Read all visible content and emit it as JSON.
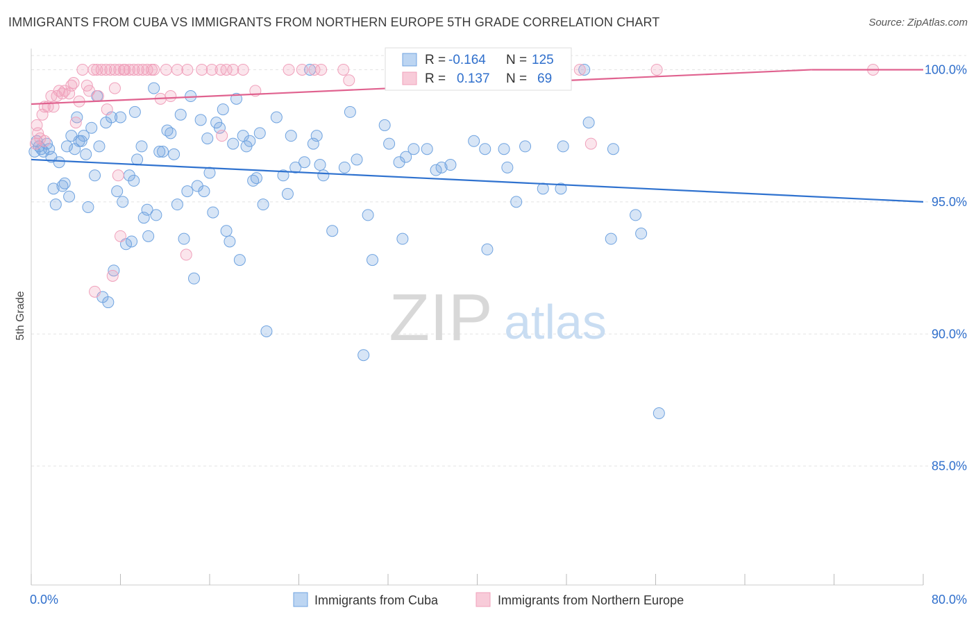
{
  "title": "IMMIGRANTS FROM CUBA VS IMMIGRANTS FROM NORTHERN EUROPE 5TH GRADE CORRELATION CHART",
  "source": "Source: ZipAtlas.com",
  "watermark": {
    "zip": "ZIP",
    "atlas": "atlas"
  },
  "colors": {
    "blue": "#6fa3e0",
    "blue_line": "#2f72cf",
    "pink": "#f0a0bb",
    "pink_line": "#e0628f",
    "label_blue": "#2f6fcc"
  },
  "legend_box": {
    "rows": [
      {
        "series": "cuba",
        "r_label": "R =",
        "r_value": "-0.164",
        "n_label": "N =",
        "n_value": "125"
      },
      {
        "series": "northern_europe",
        "r_label": "R =",
        "r_value": "0.137",
        "n_label": "N =",
        "n_value": "69"
      }
    ]
  },
  "bottom_legend": [
    {
      "series": "cuba",
      "label": "Immigrants from Cuba"
    },
    {
      "series": "northern_europe",
      "label": "Immigrants from Northern Europe"
    }
  ],
  "chart_data": {
    "type": "scatter",
    "ylabel": "5th Grade",
    "xlim": [
      0,
      80
    ],
    "ylim": [
      80.5,
      100.8
    ],
    "x_tick_labels": [
      "0.0%",
      "80.0%"
    ],
    "y_ticks": [
      85,
      90,
      95,
      100
    ],
    "y_tick_labels": [
      "85.0%",
      "90.0%",
      "95.0%",
      "100.0%"
    ],
    "grid": "horizontal dashed",
    "legend_placement": "top-center",
    "series": [
      {
        "name": "Immigrants from Cuba",
        "key": "cuba",
        "trend": {
          "x": [
            0,
            80
          ],
          "y": [
            96.6,
            95.0
          ]
        },
        "points": [
          [
            0.3,
            96.9
          ],
          [
            0.5,
            97.3
          ],
          [
            0.7,
            97.1
          ],
          [
            0.9,
            97.0
          ],
          [
            1.1,
            96.9
          ],
          [
            1.4,
            97.2
          ],
          [
            1.6,
            97.0
          ],
          [
            1.8,
            96.7
          ],
          [
            2.0,
            95.5
          ],
          [
            2.2,
            94.9
          ],
          [
            2.5,
            96.5
          ],
          [
            2.8,
            95.6
          ],
          [
            3.0,
            95.7
          ],
          [
            3.2,
            97.1
          ],
          [
            3.4,
            95.2
          ],
          [
            3.6,
            97.5
          ],
          [
            3.9,
            97.0
          ],
          [
            4.1,
            98.2
          ],
          [
            4.3,
            97.3
          ],
          [
            4.5,
            97.3
          ],
          [
            4.7,
            97.5
          ],
          [
            4.9,
            96.8
          ],
          [
            5.1,
            94.8
          ],
          [
            5.4,
            97.8
          ],
          [
            5.7,
            96.0
          ],
          [
            5.9,
            99.0
          ],
          [
            6.1,
            97.1
          ],
          [
            6.4,
            91.4
          ],
          [
            6.7,
            98.0
          ],
          [
            6.9,
            91.2
          ],
          [
            7.2,
            98.2
          ],
          [
            7.4,
            92.4
          ],
          [
            7.7,
            95.4
          ],
          [
            8.0,
            98.2
          ],
          [
            8.2,
            95.0
          ],
          [
            8.5,
            93.4
          ],
          [
            8.8,
            96.0
          ],
          [
            9.0,
            93.5
          ],
          [
            9.3,
            98.4
          ],
          [
            9.5,
            96.6
          ],
          [
            9.9,
            97.1
          ],
          [
            10.1,
            94.4
          ],
          [
            10.4,
            94.7
          ],
          [
            10.5,
            93.7
          ],
          [
            11.0,
            99.3
          ],
          [
            11.5,
            96.9
          ],
          [
            11.8,
            96.9
          ],
          [
            12.2,
            97.7
          ],
          [
            12.5,
            97.6
          ],
          [
            12.8,
            96.8
          ],
          [
            13.1,
            94.9
          ],
          [
            13.4,
            98.3
          ],
          [
            13.7,
            93.6
          ],
          [
            14.0,
            95.4
          ],
          [
            14.3,
            99.0
          ],
          [
            14.6,
            92.1
          ],
          [
            14.9,
            95.6
          ],
          [
            15.2,
            98.1
          ],
          [
            15.5,
            95.4
          ],
          [
            15.8,
            97.4
          ],
          [
            16.0,
            96.1
          ],
          [
            16.3,
            94.6
          ],
          [
            16.6,
            98.0
          ],
          [
            16.9,
            97.8
          ],
          [
            17.2,
            98.5
          ],
          [
            17.5,
            93.9
          ],
          [
            17.8,
            93.5
          ],
          [
            18.1,
            97.2
          ],
          [
            18.4,
            98.9
          ],
          [
            18.7,
            92.8
          ],
          [
            19.0,
            97.5
          ],
          [
            19.3,
            97.1
          ],
          [
            19.6,
            97.3
          ],
          [
            19.9,
            95.8
          ],
          [
            20.2,
            95.9
          ],
          [
            20.5,
            97.6
          ],
          [
            20.8,
            94.9
          ],
          [
            21.1,
            90.1
          ],
          [
            22.0,
            98.2
          ],
          [
            22.6,
            96.0
          ],
          [
            23.0,
            95.3
          ],
          [
            23.3,
            97.5
          ],
          [
            23.7,
            96.3
          ],
          [
            24.5,
            96.5
          ],
          [
            25.0,
            100.0
          ],
          [
            25.3,
            97.2
          ],
          [
            25.6,
            97.5
          ],
          [
            25.9,
            96.4
          ],
          [
            26.2,
            96.0
          ],
          [
            27.0,
            93.9
          ],
          [
            28.1,
            96.3
          ],
          [
            28.6,
            98.4
          ],
          [
            29.2,
            96.6
          ],
          [
            29.8,
            89.2
          ],
          [
            30.2,
            94.5
          ],
          [
            30.6,
            92.8
          ],
          [
            31.7,
            97.9
          ],
          [
            32.1,
            97.2
          ],
          [
            33.0,
            96.5
          ],
          [
            33.3,
            93.6
          ],
          [
            33.6,
            96.7
          ],
          [
            34.3,
            97.0
          ],
          [
            35.5,
            97.0
          ],
          [
            36.3,
            96.2
          ],
          [
            36.8,
            96.3
          ],
          [
            37.6,
            96.4
          ],
          [
            39.7,
            97.3
          ],
          [
            40.7,
            97.0
          ],
          [
            40.9,
            93.2
          ],
          [
            42.4,
            97.0
          ],
          [
            42.7,
            96.3
          ],
          [
            43.5,
            95.0
          ],
          [
            44.3,
            97.1
          ],
          [
            52.2,
            97.0
          ],
          [
            45.9,
            95.5
          ],
          [
            47.7,
            97.1
          ],
          [
            47.5,
            95.5
          ],
          [
            49.6,
            100.0
          ],
          [
            50.0,
            98.0
          ],
          [
            52.0,
            93.6
          ],
          [
            54.2,
            94.5
          ],
          [
            54.7,
            93.8
          ],
          [
            56.3,
            87.0
          ],
          [
            11.2,
            94.5
          ],
          [
            9.2,
            95.8
          ]
        ]
      },
      {
        "name": "Immigrants from Northern Europe",
        "key": "northern_europe",
        "trend": {
          "x": [
            0,
            70
          ],
          "y": [
            98.7,
            100.0
          ]
        },
        "points": [
          [
            0.5,
            97.9
          ],
          [
            0.6,
            97.6
          ],
          [
            0.8,
            97.4
          ],
          [
            1.0,
            98.3
          ],
          [
            1.2,
            98.6
          ],
          [
            1.5,
            98.6
          ],
          [
            1.8,
            99.0
          ],
          [
            2.0,
            98.6
          ],
          [
            2.3,
            99.0
          ],
          [
            2.5,
            99.2
          ],
          [
            2.8,
            99.1
          ],
          [
            3.0,
            99.2
          ],
          [
            3.4,
            99.1
          ],
          [
            3.6,
            99.4
          ],
          [
            3.8,
            99.5
          ],
          [
            4.0,
            98.0
          ],
          [
            4.3,
            98.8
          ],
          [
            4.6,
            100.0
          ],
          [
            5.0,
            99.4
          ],
          [
            5.2,
            99.2
          ],
          [
            5.6,
            100.0
          ],
          [
            5.9,
            100.0
          ],
          [
            6.3,
            100.0
          ],
          [
            6.7,
            100.0
          ],
          [
            7.1,
            100.0
          ],
          [
            7.5,
            100.0
          ],
          [
            7.9,
            100.0
          ],
          [
            8.3,
            100.0
          ],
          [
            8.8,
            100.0
          ],
          [
            9.2,
            100.0
          ],
          [
            9.6,
            100.0
          ],
          [
            10.0,
            100.0
          ],
          [
            10.4,
            100.0
          ],
          [
            10.8,
            100.0
          ],
          [
            6.0,
            99.0
          ],
          [
            7.5,
            99.3
          ],
          [
            6.8,
            98.5
          ],
          [
            7.8,
            96.0
          ],
          [
            8.0,
            93.7
          ],
          [
            7.3,
            92.2
          ],
          [
            5.7,
            91.6
          ],
          [
            12.5,
            99.0
          ],
          [
            14.0,
            100.0
          ],
          [
            15.3,
            100.0
          ],
          [
            17.0,
            100.0
          ],
          [
            18.1,
            100.0
          ],
          [
            19.0,
            100.0
          ],
          [
            23.1,
            100.0
          ],
          [
            26.0,
            100.0
          ],
          [
            28.0,
            100.0
          ],
          [
            17.1,
            97.5
          ],
          [
            12.1,
            100.0
          ],
          [
            16.2,
            100.0
          ],
          [
            11.0,
            100.0
          ],
          [
            13.1,
            100.0
          ],
          [
            17.5,
            100.0
          ],
          [
            13.9,
            93.0
          ],
          [
            28.5,
            99.6
          ],
          [
            49.2,
            100.0
          ],
          [
            75.5,
            100.0
          ],
          [
            56.1,
            100.0
          ],
          [
            50.2,
            97.2
          ],
          [
            11.6,
            98.9
          ],
          [
            24.3,
            100.0
          ],
          [
            25.4,
            100.0
          ],
          [
            1.2,
            97.3
          ],
          [
            0.4,
            97.2
          ],
          [
            20.1,
            99.2
          ],
          [
            8.4,
            100.0
          ]
        ]
      }
    ]
  }
}
